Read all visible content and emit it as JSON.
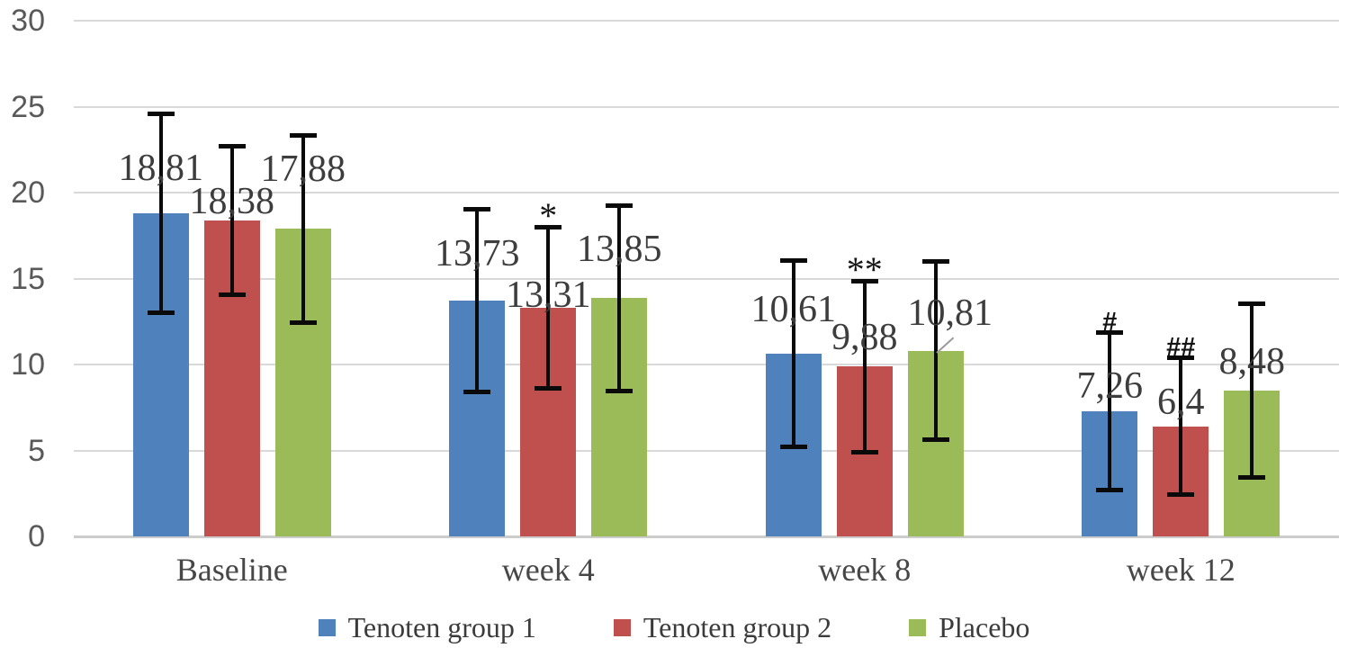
{
  "chart_data": {
    "type": "bar",
    "title": "",
    "xlabel": "",
    "ylabel": "",
    "categories": [
      "Baseline",
      "week 4",
      "week 8",
      "week 12"
    ],
    "series": [
      {
        "name": "Tenoten group 1",
        "color": "#4F81BD",
        "values": [
          18.81,
          13.73,
          10.61,
          7.26
        ],
        "errors": [
          5.8,
          5.35,
          5.45,
          4.6
        ],
        "data_labels": [
          "18,81",
          "13,73",
          "10,61",
          "7,26"
        ]
      },
      {
        "name": "Tenoten group 2",
        "color": "#C0504D",
        "values": [
          18.38,
          13.31,
          9.88,
          6.4
        ],
        "errors": [
          4.35,
          4.7,
          5.0,
          4.0
        ],
        "data_labels": [
          "18,38",
          "13,31",
          "9,88",
          "6,4"
        ]
      },
      {
        "name": "Placebo",
        "color": "#9BBB59",
        "values": [
          17.88,
          13.85,
          10.81,
          8.48
        ],
        "errors": [
          5.45,
          5.4,
          5.2,
          5.1
        ],
        "data_labels": [
          "17,88",
          "13,85",
          "10,81",
          "8,48"
        ]
      }
    ],
    "annotations": [
      {
        "text": "*",
        "category_index": 1,
        "series_index": 1
      },
      {
        "text": "**",
        "category_index": 2,
        "series_index": 1
      },
      {
        "text": "#",
        "category_index": 3,
        "series_index": 0
      },
      {
        "text": "##",
        "category_index": 3,
        "series_index": 1
      }
    ],
    "callout_label": {
      "category_index": 2,
      "series_index": 2
    },
    "yticks": [
      0,
      5,
      10,
      15,
      20,
      25,
      30
    ],
    "ylim": [
      0,
      30
    ],
    "grid": true,
    "legend_position": "bottom",
    "decimal_separator": ",",
    "error_bar_color": "#0a0a0a",
    "colors": {
      "gridline": "#d9d9d9",
      "axis_line": "#cccccc",
      "y_tick_label": "#595959",
      "x_tick_label": "#474747",
      "data_label": "#3d3d3d",
      "leader_line": "#9a9a9a"
    },
    "label_offsets_units": [
      [
        2.6,
        1.1,
        3.5
      ],
      [
        2.7,
        0.7,
        2.85
      ],
      [
        2.6,
        1.7,
        2.2
      ],
      [
        1.5,
        1.4,
        1.7
      ]
    ]
  }
}
